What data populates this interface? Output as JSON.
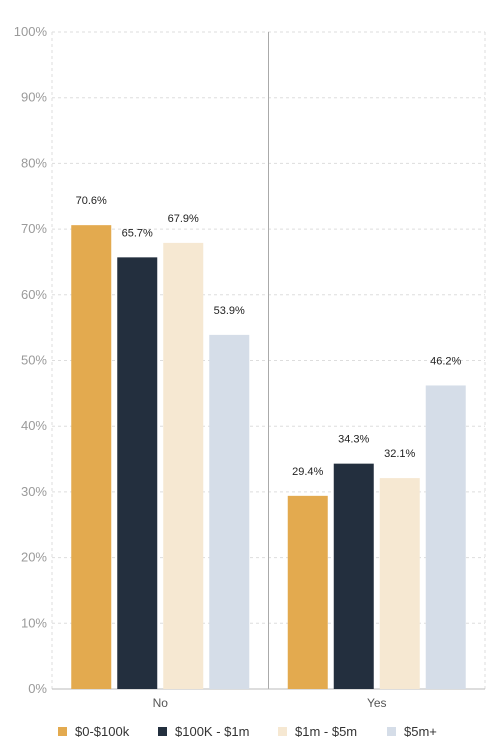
{
  "chart_data": {
    "type": "bar",
    "categories": [
      "No",
      "Yes"
    ],
    "series": [
      {
        "name": "$0-$100k",
        "values": [
          70.6,
          29.4
        ],
        "color": "#E3AA4F"
      },
      {
        "name": "$100K - $1m",
        "values": [
          65.7,
          34.3
        ],
        "color": "#232F3E"
      },
      {
        "name": "$1m - $5m",
        "values": [
          67.9,
          32.1
        ],
        "color": "#F6E8D2"
      },
      {
        "name": "$5m+",
        "values": [
          53.9,
          46.2
        ],
        "color": "#D5DDE8"
      }
    ],
    "data_labels": [
      [
        "70.6%",
        "29.4%"
      ],
      [
        "65.7%",
        "34.3%"
      ],
      [
        "67.9%",
        "32.1%"
      ],
      [
        "53.9%",
        "46.2%"
      ]
    ],
    "yticks": [
      "0%",
      "10%",
      "20%",
      "30%",
      "40%",
      "50%",
      "60%",
      "70%",
      "80%",
      "90%",
      "100%"
    ],
    "ylim": [
      0,
      100
    ],
    "grid": true,
    "legend_position": "bottom"
  }
}
